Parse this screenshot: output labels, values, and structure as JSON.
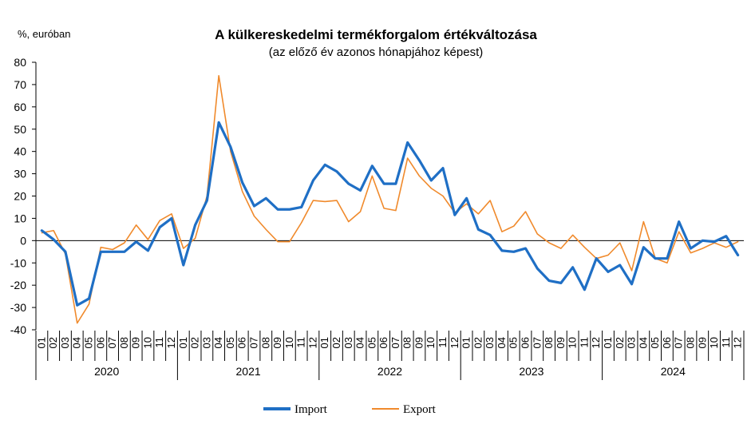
{
  "chart_data": {
    "type": "line",
    "title": "A külkereskedelmi termékforgalom értékváltozása",
    "subtitle": "(az előző év azonos hónapjához képest)",
    "ylabel": "%, euróban",
    "ylim": [
      -40,
      80
    ],
    "yticks": [
      -40,
      -30,
      -20,
      -10,
      0,
      10,
      20,
      30,
      40,
      50,
      60,
      70,
      80
    ],
    "grid": false,
    "legend_position": "bottom-center",
    "years": [
      "2020",
      "2021",
      "2022",
      "2023",
      "2024"
    ],
    "months": [
      "01",
      "02",
      "03",
      "04",
      "05",
      "06",
      "07",
      "08",
      "09",
      "10",
      "11",
      "12"
    ],
    "series": [
      {
        "name": "Import",
        "color": "#1f6fc5",
        "values": [
          4.5,
          0.5,
          -5,
          -29,
          -26,
          -5,
          -5,
          -5,
          -0.5,
          -4.5,
          6,
          10,
          -11,
          7,
          18,
          53,
          42,
          26,
          15.5,
          19,
          14,
          14,
          15,
          27,
          34,
          31,
          25.5,
          22.5,
          33.5,
          25.5,
          25.5,
          44,
          36,
          27,
          32.5,
          11.5,
          19,
          5,
          2.5,
          -4.5,
          -5,
          -3.5,
          -12.5,
          -18,
          -19,
          -12,
          -22,
          -8,
          -14,
          -11,
          -19.5,
          -3,
          -8,
          -8,
          8.5,
          -3.5,
          0,
          -0.5,
          2,
          -6.5
        ]
      },
      {
        "name": "Export",
        "color": "#f08a2c",
        "values": [
          3.5,
          4.5,
          -6,
          -37,
          -28.5,
          -3,
          -4,
          -1,
          7,
          0.5,
          9,
          12,
          -3.5,
          1,
          20,
          74,
          40,
          22,
          11,
          5,
          -0.5,
          -0.5,
          8,
          18,
          17.5,
          18,
          8.5,
          13,
          29,
          14.5,
          13.5,
          37,
          29,
          23.5,
          20,
          12.5,
          16.5,
          12,
          18,
          4,
          6.5,
          13,
          3,
          -1,
          -3.5,
          2.5,
          -3,
          -8,
          -6.5,
          -1,
          -13.5,
          8.5,
          -8,
          -10,
          4,
          -5.5,
          -3.5,
          -1,
          -3,
          -0.5
        ]
      }
    ]
  }
}
